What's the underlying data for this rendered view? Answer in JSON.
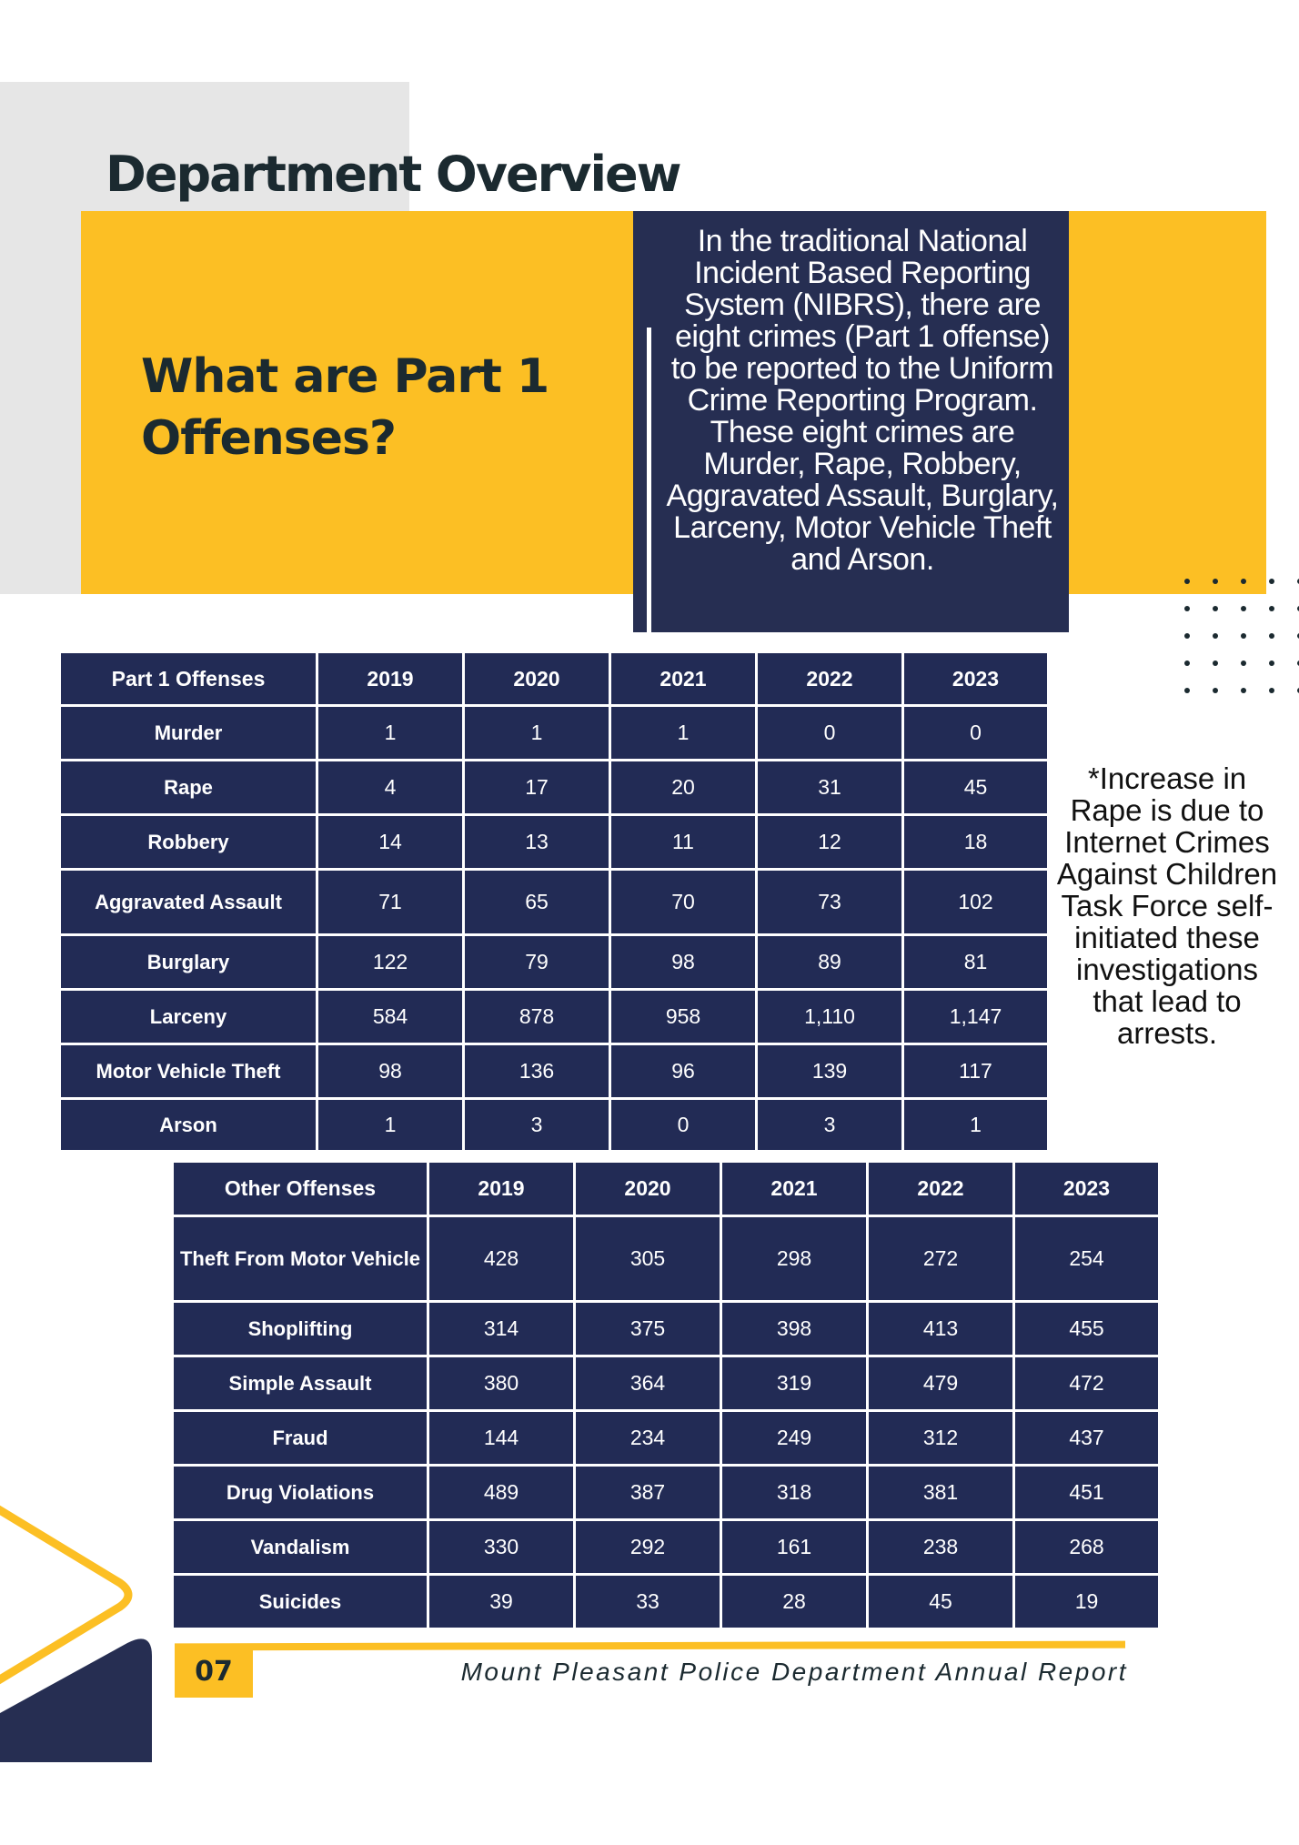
{
  "header": {
    "title": "Department Overview"
  },
  "intro": {
    "question": "What are Part 1 Offenses?",
    "text": "In the traditional National Incident Based Reporting System (NIBRS), there are eight crimes (Part 1 offense) to be reported to the Uniform Crime Reporting Program. These eight crimes are Murder, Rape, Robbery, Aggravated Assault, Burglary, Larceny, Motor Vehicle Theft and Arson."
  },
  "part1_table": {
    "headers": [
      "Part 1 Offenses",
      "2019",
      "2020",
      "2021",
      "2022",
      "2023"
    ],
    "rows": [
      {
        "label": "Murder",
        "values": [
          "1",
          "1",
          "1",
          "0",
          "0"
        ]
      },
      {
        "label": "Rape",
        "values": [
          "4",
          "17",
          "20",
          "31",
          "45"
        ]
      },
      {
        "label": "Robbery",
        "values": [
          "14",
          "13",
          "11",
          "12",
          "18"
        ]
      },
      {
        "label": "Aggravated Assault",
        "values": [
          "71",
          "65",
          "70",
          "73",
          "102"
        ]
      },
      {
        "label": "Burglary",
        "values": [
          "122",
          "79",
          "98",
          "89",
          "81"
        ]
      },
      {
        "label": "Larceny",
        "values": [
          "584",
          "878",
          "958",
          "1,110",
          "1,147"
        ]
      },
      {
        "label": "Motor Vehicle Theft",
        "values": [
          "98",
          "136",
          "96",
          "139",
          "117"
        ]
      },
      {
        "label": "Arson",
        "values": [
          "1",
          "3",
          "0",
          "3",
          "1"
        ]
      }
    ]
  },
  "note": "*Increase in Rape is due to Internet Crimes Against Children Task Force self-initiated these investigations that lead to arrests.",
  "other_table": {
    "headers": [
      "Other Offenses",
      "2019",
      "2020",
      "2021",
      "2022",
      "2023"
    ],
    "rows": [
      {
        "label": "Theft From Motor Vehicle",
        "values": [
          "428",
          "305",
          "298",
          "272",
          "254"
        ]
      },
      {
        "label": "Shoplifting",
        "values": [
          "314",
          "375",
          "398",
          "413",
          "455"
        ]
      },
      {
        "label": "Simple Assault",
        "values": [
          "380",
          "364",
          "319",
          "479",
          "472"
        ]
      },
      {
        "label": "Fraud",
        "values": [
          "144",
          "234",
          "249",
          "312",
          "437"
        ]
      },
      {
        "label": "Drug Violations",
        "values": [
          "489",
          "387",
          "318",
          "381",
          "451"
        ]
      },
      {
        "label": "Vandalism",
        "values": [
          "330",
          "292",
          "161",
          "238",
          "268"
        ]
      },
      {
        "label": "Suicides",
        "values": [
          "39",
          "33",
          "28",
          "45",
          "19"
        ]
      }
    ]
  },
  "footer": {
    "page_number": "07",
    "text": "Mount Pleasant Police Department Annual Report"
  },
  "colors": {
    "navy": "#222b55",
    "yellow": "#fcbf24",
    "gray": "#e6e6e6",
    "text_dark": "#1b2a30"
  }
}
